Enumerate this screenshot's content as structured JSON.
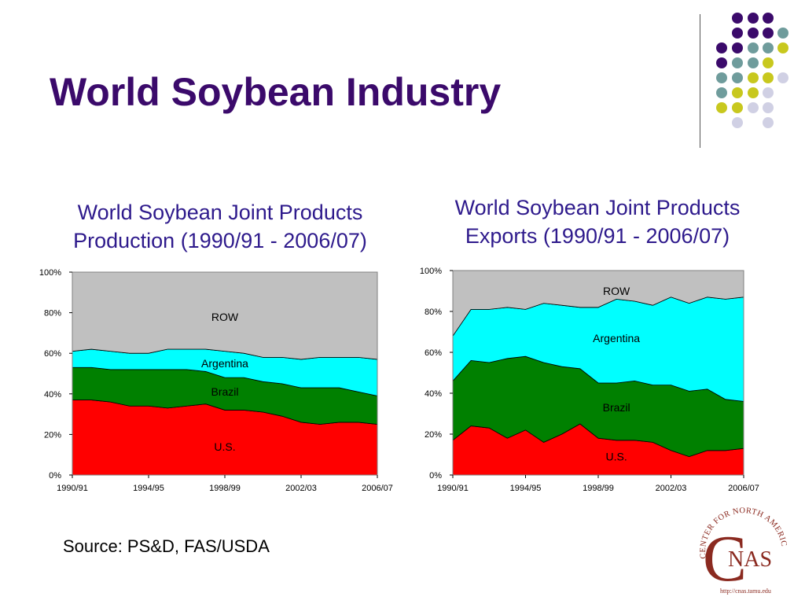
{
  "slide": {
    "title": "World Soybean Industry"
  },
  "footer": {
    "source": "Source: PS&D, FAS/USDA"
  },
  "logo": {
    "arc_text": "CENTER FOR NORTH AMERICAN STUDIES",
    "main_letter": "C",
    "main_text": "NAS",
    "url": "http://cnas.tamu.edu",
    "color": "#8b2a20"
  },
  "chart_data": [
    {
      "type": "area",
      "stacked": true,
      "title": "World Soybean Joint Products Production (1990/91 - 2006/07)",
      "title_lines": [
        "World Soybean Joint Products",
        "Production (1990/91 - 2006/07)"
      ],
      "x": [
        "1990/91",
        "1991/92",
        "1992/93",
        "1993/94",
        "1994/95",
        "1995/96",
        "1996/97",
        "1997/98",
        "1998/99",
        "1999/00",
        "2000/01",
        "2001/02",
        "2002/03",
        "2003/04",
        "2004/05",
        "2005/06",
        "2006/07"
      ],
      "xticks": [
        "1990/91",
        "1994/95",
        "1998/99",
        "2002/03",
        "2006/07"
      ],
      "yticks": [
        "0%",
        "20%",
        "40%",
        "60%",
        "80%",
        "100%"
      ],
      "ylim": [
        0,
        100
      ],
      "series": [
        {
          "name": "U.S.",
          "color": "#ff0000",
          "values": [
            37,
            37,
            36,
            34,
            34,
            33,
            34,
            35,
            32,
            32,
            31,
            29,
            26,
            25,
            26,
            26,
            25
          ]
        },
        {
          "name": "Brazil",
          "color": "#008000",
          "values": [
            16,
            16,
            16,
            18,
            18,
            19,
            18,
            16,
            16,
            16,
            15,
            16,
            17,
            18,
            17,
            15,
            14
          ]
        },
        {
          "name": "Argentina",
          "color": "#00ffff",
          "values": [
            8,
            9,
            9,
            8,
            8,
            10,
            10,
            11,
            13,
            12,
            12,
            13,
            14,
            15,
            15,
            17,
            18
          ]
        },
        {
          "name": "ROW",
          "color": "#c0c0c0",
          "values": [
            39,
            38,
            39,
            40,
            40,
            38,
            38,
            38,
            39,
            40,
            42,
            42,
            43,
            42,
            42,
            42,
            43
          ]
        }
      ],
      "labels": [
        {
          "text": "ROW",
          "xi": 8,
          "y": 78,
          "color": "#000000"
        },
        {
          "text": "Argentina",
          "xi": 8,
          "y": 55,
          "color": "#000000"
        },
        {
          "text": "Brazil",
          "xi": 8,
          "y": 41,
          "color": "#000000"
        },
        {
          "text": "U.S.",
          "xi": 8,
          "y": 14,
          "color": "#000000"
        }
      ],
      "grid": false
    },
    {
      "type": "area",
      "stacked": true,
      "title": "World Soybean Joint Products Exports (1990/91 - 2006/07)",
      "title_lines": [
        "World Soybean Joint Products",
        "Exports (1990/91 - 2006/07)"
      ],
      "x": [
        "1990/91",
        "1991/92",
        "1992/93",
        "1993/94",
        "1994/95",
        "1995/96",
        "1996/97",
        "1997/98",
        "1998/99",
        "1999/00",
        "2000/01",
        "2001/02",
        "2002/03",
        "2003/04",
        "2004/05",
        "2005/06",
        "2006/07"
      ],
      "xticks": [
        "1990/91",
        "1994/95",
        "1998/99",
        "2002/03",
        "2006/07"
      ],
      "yticks": [
        "0%",
        "20%",
        "40%",
        "60%",
        "80%",
        "100%"
      ],
      "ylim": [
        0,
        100
      ],
      "series": [
        {
          "name": "U.S.",
          "color": "#ff0000",
          "values": [
            17,
            24,
            23,
            18,
            22,
            16,
            20,
            25,
            18,
            17,
            17,
            16,
            12,
            9,
            12,
            12,
            13
          ]
        },
        {
          "name": "Brazil",
          "color": "#008000",
          "values": [
            29,
            32,
            32,
            39,
            36,
            39,
            33,
            27,
            27,
            28,
            29,
            28,
            32,
            32,
            30,
            25,
            23
          ]
        },
        {
          "name": "Argentina",
          "color": "#00ffff",
          "values": [
            22,
            25,
            26,
            25,
            23,
            29,
            30,
            30,
            37,
            41,
            39,
            39,
            43,
            43,
            45,
            49,
            51
          ]
        },
        {
          "name": "ROW",
          "color": "#c0c0c0",
          "values": [
            32,
            19,
            19,
            18,
            19,
            16,
            17,
            18,
            18,
            14,
            15,
            17,
            13,
            16,
            13,
            14,
            13
          ]
        }
      ],
      "labels": [
        {
          "text": "ROW",
          "xi": 9,
          "y": 90,
          "color": "#000000"
        },
        {
          "text": "Argentina",
          "xi": 9,
          "y": 67,
          "color": "#000000"
        },
        {
          "text": "Brazil",
          "xi": 9,
          "y": 33,
          "color": "#000000"
        },
        {
          "text": "U.S.",
          "xi": 9,
          "y": 9,
          "color": "#000000"
        }
      ],
      "grid": false
    }
  ]
}
